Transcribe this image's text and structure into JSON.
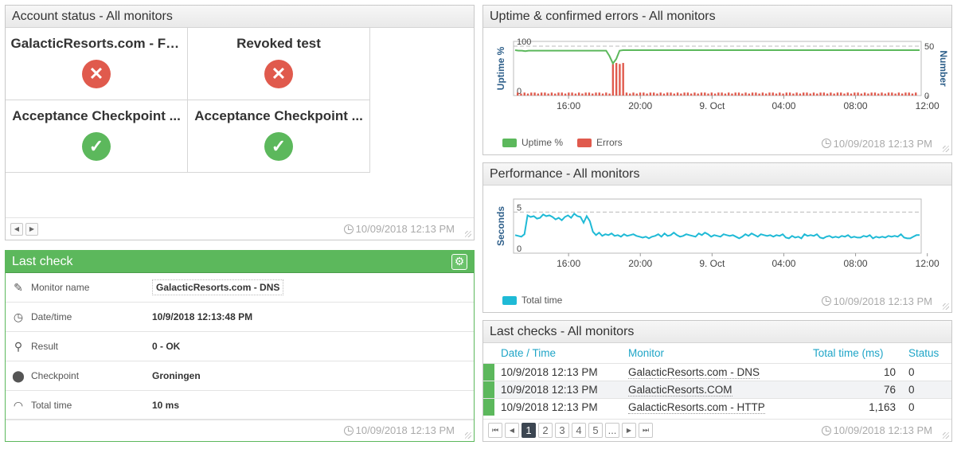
{
  "account_status": {
    "title": "Account status - All monitors",
    "tiles": [
      {
        "name": "GalacticResorts.com - Fu...",
        "status": "error"
      },
      {
        "name": "Revoked test",
        "status": "error"
      },
      {
        "name": "Acceptance Checkpoint ...",
        "status": "ok"
      },
      {
        "name": "Acceptance Checkpoint ...",
        "status": "ok"
      }
    ],
    "timestamp": "10/09/2018 12:13 PM"
  },
  "last_check": {
    "title": "Last check",
    "rows": [
      {
        "icon": "pencil-icon",
        "label": "Monitor name",
        "value": "GalacticResorts.com - DNS"
      },
      {
        "icon": "clock-icon",
        "label": "Date/time",
        "value": "10/9/2018 12:13:48 PM"
      },
      {
        "icon": "magnifier-icon",
        "label": "Result",
        "value": "0 - OK"
      },
      {
        "icon": "map-pin-icon",
        "label": "Checkpoint",
        "value": "Groningen"
      },
      {
        "icon": "gauge-icon",
        "label": "Total time",
        "value": "10 ms"
      }
    ],
    "timestamp": "10/09/2018 12:13 PM"
  },
  "uptime_panel": {
    "title": "Uptime & confirmed errors - All monitors",
    "timestamp": "10/09/2018 12:13 PM",
    "legend": [
      {
        "label": "Uptime %",
        "color": "#5cb85c"
      },
      {
        "label": "Errors",
        "color": "#e05a4d"
      }
    ]
  },
  "performance_panel": {
    "title": "Performance - All monitors",
    "timestamp": "10/09/2018 12:13 PM",
    "legend": [
      {
        "label": "Total time",
        "color": "#1fbad6"
      }
    ]
  },
  "last_checks": {
    "title": "Last checks - All monitors",
    "columns": [
      "Date / Time",
      "Monitor",
      "Total time (ms)",
      "Status"
    ],
    "rows": [
      {
        "datetime": "10/9/2018 12:13 PM",
        "monitor": "GalacticResorts.com - DNS",
        "total_time": "10",
        "status": "0"
      },
      {
        "datetime": "10/9/2018 12:13 PM",
        "monitor": "GalacticResorts.COM",
        "total_time": "76",
        "status": "0"
      },
      {
        "datetime": "10/9/2018 12:13 PM",
        "monitor": "GalacticResorts.com - HTTP",
        "total_time": "1,163",
        "status": "0"
      }
    ],
    "pages": [
      "1",
      "2",
      "3",
      "4",
      "5",
      "..."
    ],
    "current_page": "1",
    "timestamp": "10/09/2018 12:13 PM"
  },
  "chart_data": [
    {
      "type": "line",
      "title": "Uptime & confirmed errors - All monitors",
      "ylabel": "Uptime %",
      "y2label": "Number",
      "x_ticks": [
        "16:00",
        "20:00",
        "9. Oct",
        "04:00",
        "08:00",
        "12:00"
      ],
      "ylim": [
        0,
        100
      ],
      "y_ticks": [
        "0",
        "100"
      ],
      "y2lim": [
        0,
        50
      ],
      "y2_ticks": [
        "0",
        "50"
      ],
      "series": [
        {
          "name": "Uptime %",
          "kind": "line",
          "values": [
            92,
            91,
            91,
            90,
            91,
            91,
            91,
            91,
            91,
            91,
            91,
            91,
            91,
            91,
            91,
            91,
            91,
            91,
            91,
            91,
            91,
            91,
            91,
            91,
            91,
            91,
            91,
            91,
            80,
            65,
            74,
            91,
            92,
            92,
            92,
            92,
            92,
            92,
            92,
            92,
            92,
            92,
            92,
            92,
            92,
            92,
            92,
            92,
            92,
            92,
            92,
            92,
            92,
            92,
            92,
            92,
            92,
            92,
            92,
            92,
            92,
            92,
            92,
            92,
            92,
            92,
            92,
            92,
            92,
            92,
            92,
            92,
            92,
            92,
            92,
            92,
            92,
            92,
            92,
            92,
            92,
            92,
            92,
            92,
            92,
            92,
            92,
            92,
            92,
            92,
            92,
            92,
            92,
            92,
            92,
            92,
            92,
            92,
            92,
            92,
            92,
            92,
            92,
            92,
            92,
            92,
            92,
            92,
            92,
            92,
            92,
            92,
            92,
            92,
            92,
            92,
            92,
            92,
            92,
            92,
            92
          ]
        },
        {
          "name": "Errors",
          "kind": "bar",
          "values": [
            3,
            2,
            3,
            2,
            3,
            3,
            2,
            3,
            3,
            2,
            3,
            2,
            3,
            3,
            2,
            3,
            3,
            2,
            3,
            2,
            3,
            3,
            2,
            3,
            3,
            2,
            3,
            2,
            32,
            33,
            32,
            33,
            3,
            2,
            3,
            2,
            3,
            3,
            2,
            3,
            3,
            2,
            3,
            2,
            3,
            3,
            2,
            3,
            2,
            3,
            3,
            2,
            3,
            2,
            3,
            3,
            2,
            3,
            2,
            3,
            3,
            2,
            3,
            2,
            3,
            3,
            2,
            3,
            2,
            3,
            3,
            2,
            3,
            2,
            3,
            3,
            2,
            3,
            2,
            3,
            3,
            2,
            3,
            2,
            3,
            3,
            2,
            3,
            2,
            3,
            3,
            2,
            3,
            2,
            3,
            3,
            2,
            3,
            2,
            3,
            3,
            2,
            3,
            2,
            3,
            3,
            2,
            3,
            2,
            3,
            3,
            2,
            3,
            2,
            3,
            3,
            2,
            3
          ]
        }
      ]
    },
    {
      "type": "line",
      "title": "Performance - All monitors",
      "ylabel": "Seconds",
      "x_ticks": [
        "16:00",
        "20:00",
        "9. Oct",
        "04:00",
        "08:00",
        "12:00"
      ],
      "ylim": [
        0,
        6
      ],
      "y_ticks": [
        "0",
        "5"
      ],
      "series": [
        {
          "name": "Total time",
          "values": [
            2.2,
            2.1,
            2.0,
            2.3,
            4.6,
            4.4,
            4.5,
            4.2,
            4.3,
            4.7,
            4.5,
            4.6,
            4.4,
            4.1,
            4.3,
            4.0,
            4.4,
            4.6,
            4.3,
            4.8,
            4.5,
            4.4,
            3.7,
            4.5,
            3.9,
            2.6,
            2.2,
            2.5,
            2.1,
            2.3,
            2.2,
            2.4,
            2.1,
            2.2,
            2.0,
            2.3,
            2.1,
            2.2,
            2.3,
            2.1,
            2.0,
            1.9,
            2.0,
            1.8,
            2.0,
            2.1,
            2.3,
            2.0,
            2.4,
            2.1,
            2.2,
            2.5,
            2.2,
            2.0,
            2.1,
            2.3,
            2.2,
            2.1,
            2.0,
            2.4,
            2.2,
            2.5,
            2.3,
            2.0,
            2.2,
            2.1,
            2.0,
            2.3,
            2.2,
            2.1,
            2.2,
            2.0,
            1.8,
            2.0,
            2.3,
            2.1,
            2.4,
            2.2,
            2.0,
            2.3,
            2.2,
            2.1,
            2.2,
            2.0,
            2.2,
            2.1,
            2.3,
            1.9,
            1.8,
            2.1,
            1.9,
            2.0,
            1.8,
            2.3,
            2.1,
            2.2,
            2.1,
            2.3,
            1.9,
            1.8,
            2.0,
            2.1,
            1.9,
            2.0,
            1.9,
            2.1,
            2.0,
            2.2,
            1.9,
            2.0,
            1.9,
            1.9,
            2.1,
            2.0,
            2.2,
            1.8,
            2.0,
            1.9,
            2.0,
            1.9,
            2.1,
            2.0,
            2.1,
            2.0,
            2.3,
            1.9,
            1.8,
            1.8,
            2.0,
            2.2,
            2.2
          ]
        }
      ]
    }
  ]
}
